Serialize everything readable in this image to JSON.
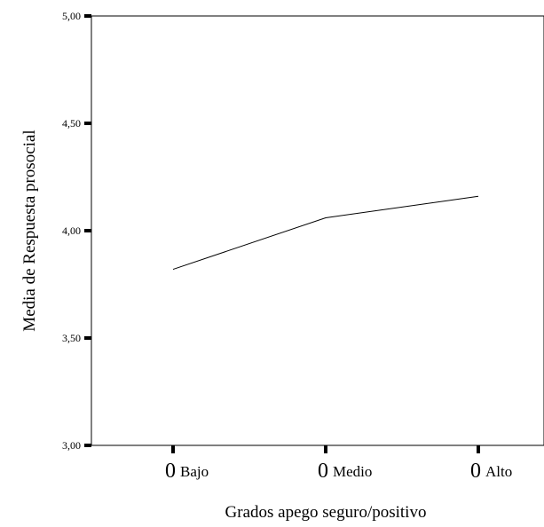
{
  "chart_data": {
    "type": "line",
    "title": "",
    "xlabel": "Grados apego seguro/positivo",
    "ylabel": "Media de Respuesta prosocial",
    "categories": [
      {
        "prefix": "0",
        "label": "Bajo"
      },
      {
        "prefix": "0",
        "label": "Medio"
      },
      {
        "prefix": "0",
        "label": "Alto"
      }
    ],
    "series": [
      {
        "values": [
          3.82,
          4.06,
          4.16
        ]
      }
    ],
    "ylim": [
      3.0,
      5.0
    ],
    "yticks": [
      "3,00",
      "3,50",
      "4,00",
      "4,50",
      "5,00"
    ],
    "ytick_values": [
      3.0,
      3.5,
      4.0,
      4.5,
      5.0
    ],
    "grid": false,
    "line_color": "#000000"
  }
}
